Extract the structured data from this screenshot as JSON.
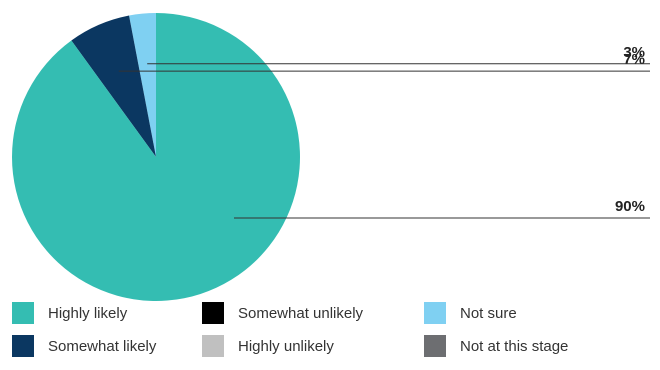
{
  "chart_data": {
    "type": "pie",
    "slices": [
      {
        "label": "Highly likely",
        "value": 90,
        "display": "90%",
        "color": "#34BDB2"
      },
      {
        "label": "Somewhat likely",
        "value": 7,
        "display": "7%",
        "color": "#0B3761"
      },
      {
        "label": "Not sure",
        "value": 3,
        "display": "3%",
        "color": "#7FD0F2"
      }
    ],
    "legend": [
      {
        "label": "Highly likely",
        "color": "#34BDB2"
      },
      {
        "label": "Somewhat unlikely",
        "color": "#000000"
      },
      {
        "label": "Not sure",
        "color": "#7FD0F2"
      },
      {
        "label": "Somewhat likely",
        "color": "#0B3761"
      },
      {
        "label": "Highly unlikely",
        "color": "#C0C0C0"
      },
      {
        "label": "Not at this stage",
        "color": "#6D6E71"
      }
    ],
    "legend_placement": "bottom",
    "start_angle": "12 o'clock",
    "direction": "clockwise"
  }
}
